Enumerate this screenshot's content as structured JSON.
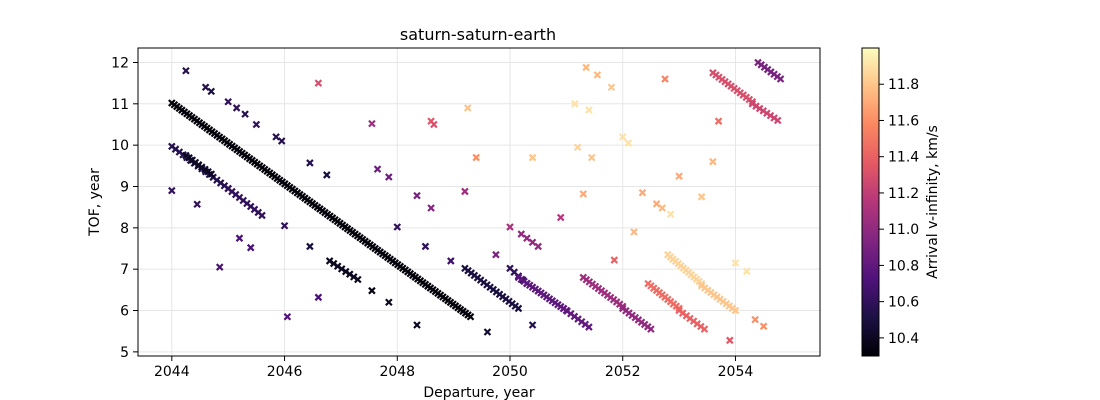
{
  "chart_data": {
    "type": "scatter",
    "title": "saturn-saturn-earth",
    "xlabel": "Departure, year",
    "ylabel": "TOF, year",
    "xlim": [
      2043.4,
      2055.5
    ],
    "ylim": [
      4.9,
      12.35
    ],
    "xticks": [
      2044,
      2046,
      2048,
      2050,
      2052,
      2054
    ],
    "yticks": [
      5,
      6,
      7,
      8,
      9,
      10,
      11,
      12
    ],
    "grid": true,
    "marker": "x",
    "colorbar": {
      "label": "Arrival v-infinity, km/s",
      "colormap": "magma",
      "min": 10.3,
      "max": 12.0,
      "ticks": [
        10.4,
        10.6,
        10.8,
        11.0,
        11.2,
        11.4,
        11.6,
        11.8
      ]
    },
    "segments": [
      {
        "x0": 2044.0,
        "y0": 11.02,
        "x1": 2049.3,
        "y1": 5.85,
        "c": 10.32,
        "n": 120
      },
      {
        "x0": 2044.0,
        "y0": 9.97,
        "x1": 2045.0,
        "y1": 8.95,
        "c": 10.55,
        "n": 16
      },
      {
        "x0": 2045.0,
        "y0": 8.95,
        "x1": 2045.6,
        "y1": 8.3,
        "c": 10.6,
        "n": 10
      },
      {
        "x0": 2044.25,
        "y0": 9.75,
        "x1": 2044.7,
        "y1": 9.3,
        "c": 10.4,
        "n": 9
      },
      {
        "x0": 2046.8,
        "y0": 7.2,
        "x1": 2047.3,
        "y1": 6.75,
        "c": 10.4,
        "n": 8
      },
      {
        "x0": 2049.2,
        "y0": 7.02,
        "x1": 2050.15,
        "y1": 6.05,
        "c": 10.5,
        "n": 18
      },
      {
        "x0": 2050.0,
        "y0": 7.02,
        "x1": 2050.3,
        "y1": 6.65,
        "c": 10.58,
        "n": 5
      },
      {
        "x0": 2050.15,
        "y0": 6.8,
        "x1": 2051.0,
        "y1": 6.0,
        "c": 10.78,
        "n": 18
      },
      {
        "x0": 2050.95,
        "y0": 6.05,
        "x1": 2051.4,
        "y1": 5.6,
        "c": 10.8,
        "n": 8
      },
      {
        "x0": 2050.2,
        "y0": 7.85,
        "x1": 2050.5,
        "y1": 7.55,
        "c": 11.0,
        "n": 4
      },
      {
        "x0": 2051.3,
        "y0": 6.8,
        "x1": 2052.0,
        "y1": 6.1,
        "c": 11.05,
        "n": 14
      },
      {
        "x0": 2052.0,
        "y0": 6.05,
        "x1": 2052.5,
        "y1": 5.55,
        "c": 11.0,
        "n": 10
      },
      {
        "x0": 2052.45,
        "y0": 6.65,
        "x1": 2053.0,
        "y1": 6.05,
        "c": 11.45,
        "n": 12
      },
      {
        "x0": 2053.0,
        "y0": 6.0,
        "x1": 2053.45,
        "y1": 5.55,
        "c": 11.4,
        "n": 8
      },
      {
        "x0": 2052.8,
        "y0": 7.35,
        "x1": 2053.4,
        "y1": 6.65,
        "c": 11.85,
        "n": 14
      },
      {
        "x0": 2053.4,
        "y0": 6.6,
        "x1": 2054.0,
        "y1": 6.0,
        "c": 11.8,
        "n": 12
      },
      {
        "x0": 2053.6,
        "y0": 11.75,
        "x1": 2054.3,
        "y1": 11.05,
        "c": 11.3,
        "n": 14
      },
      {
        "x0": 2054.3,
        "y0": 11.0,
        "x1": 2054.75,
        "y1": 10.6,
        "c": 11.25,
        "n": 8
      },
      {
        "x0": 2054.4,
        "y0": 12.0,
        "x1": 2054.8,
        "y1": 11.6,
        "c": 10.9,
        "n": 8
      }
    ],
    "points": [
      [
        2044.0,
        8.9,
        10.6
      ],
      [
        2044.25,
        11.8,
        10.55
      ],
      [
        2044.45,
        8.57,
        10.6
      ],
      [
        2044.6,
        11.4,
        10.55
      ],
      [
        2044.7,
        11.3,
        10.5
      ],
      [
        2044.85,
        7.05,
        10.7
      ],
      [
        2045.0,
        11.05,
        10.6
      ],
      [
        2045.15,
        10.9,
        10.6
      ],
      [
        2045.3,
        10.75,
        10.55
      ],
      [
        2045.5,
        10.5,
        10.6
      ],
      [
        2045.2,
        7.75,
        10.7
      ],
      [
        2045.4,
        7.52,
        10.7
      ],
      [
        2045.85,
        10.2,
        10.55
      ],
      [
        2045.95,
        10.1,
        10.55
      ],
      [
        2046.0,
        8.05,
        10.6
      ],
      [
        2046.05,
        5.85,
        10.75
      ],
      [
        2046.45,
        9.57,
        10.55
      ],
      [
        2046.45,
        7.55,
        10.5
      ],
      [
        2046.6,
        6.32,
        10.7
      ],
      [
        2046.75,
        9.28,
        10.5
      ],
      [
        2046.6,
        11.5,
        11.3
      ],
      [
        2047.55,
        10.52,
        11.05
      ],
      [
        2047.65,
        9.42,
        10.85
      ],
      [
        2047.85,
        9.23,
        10.85
      ],
      [
        2047.55,
        6.48,
        10.35
      ],
      [
        2047.85,
        6.2,
        10.4
      ],
      [
        2048.0,
        8.02,
        10.6
      ],
      [
        2048.35,
        5.65,
        10.4
      ],
      [
        2048.35,
        8.78,
        10.9
      ],
      [
        2048.5,
        7.55,
        10.6
      ],
      [
        2048.6,
        8.48,
        10.95
      ],
      [
        2048.6,
        10.58,
        11.35
      ],
      [
        2048.65,
        10.5,
        11.3
      ],
      [
        2048.95,
        7.2,
        10.65
      ],
      [
        2049.2,
        8.88,
        11.05
      ],
      [
        2049.25,
        10.9,
        11.8
      ],
      [
        2049.4,
        9.7,
        11.6
      ],
      [
        2049.6,
        5.48,
        10.45
      ],
      [
        2049.75,
        7.35,
        10.9
      ],
      [
        2050.0,
        8.02,
        11.1
      ],
      [
        2050.4,
        9.7,
        11.8
      ],
      [
        2050.4,
        5.65,
        10.55
      ],
      [
        2050.9,
        8.25,
        11.15
      ],
      [
        2051.15,
        11.0,
        11.9
      ],
      [
        2051.2,
        9.95,
        11.85
      ],
      [
        2051.3,
        8.82,
        11.7
      ],
      [
        2051.35,
        11.88,
        11.75
      ],
      [
        2051.4,
        10.85,
        11.9
      ],
      [
        2051.45,
        9.7,
        11.8
      ],
      [
        2051.55,
        11.7,
        11.75
      ],
      [
        2051.8,
        11.4,
        11.8
      ],
      [
        2051.85,
        7.22,
        11.4
      ],
      [
        2052.0,
        10.2,
        11.9
      ],
      [
        2052.1,
        10.05,
        11.9
      ],
      [
        2052.2,
        7.9,
        11.75
      ],
      [
        2052.35,
        8.85,
        11.7
      ],
      [
        2052.6,
        8.58,
        11.7
      ],
      [
        2052.7,
        8.48,
        11.75
      ],
      [
        2052.75,
        11.6,
        11.55
      ],
      [
        2052.85,
        8.33,
        11.9
      ],
      [
        2053.0,
        9.25,
        11.7
      ],
      [
        2053.4,
        8.75,
        11.8
      ],
      [
        2053.6,
        9.6,
        11.75
      ],
      [
        2053.7,
        10.58,
        11.45
      ],
      [
        2053.9,
        5.28,
        11.35
      ],
      [
        2054.0,
        7.15,
        11.9
      ],
      [
        2054.2,
        6.95,
        11.9
      ],
      [
        2054.35,
        5.78,
        11.6
      ],
      [
        2054.5,
        5.62,
        11.6
      ]
    ]
  }
}
